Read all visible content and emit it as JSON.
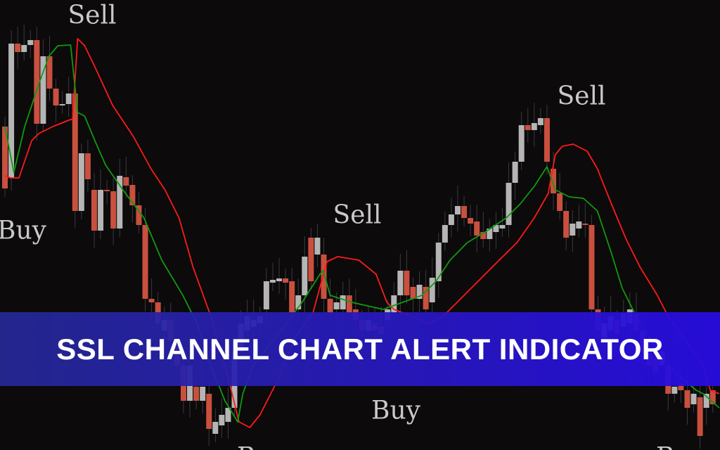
{
  "banner": {
    "title": "SSL CHANNEL CHART ALERT INDICATOR"
  },
  "signals": [
    {
      "label": "Sell"
    },
    {
      "label": "Sell"
    },
    {
      "label": "Sell"
    },
    {
      "label": "Buy"
    },
    {
      "label": "Buy"
    },
    {
      "label": "Buy"
    },
    {
      "label": "Buy"
    }
  ],
  "colors": {
    "background": "#0c0a0a",
    "bull_candle": "#b5b5b5",
    "bear_candle": "#c9503e",
    "ssl_up": "#ff1a1a",
    "ssl_down": "#119911",
    "banner": "#2a14d8"
  },
  "chart_data": {
    "type": "candlestick",
    "title": "",
    "xlabel": "",
    "ylabel": "",
    "grid": false,
    "x": "candle index",
    "ylim": [
      0,
      70
    ],
    "candles_open_close": [
      [
        52.0,
        43.2
      ],
      [
        44.7,
        63.8
      ],
      [
        63.8,
        62.6
      ],
      [
        62.6,
        63.6
      ],
      [
        63.6,
        64.3
      ],
      [
        64.3,
        52.4
      ],
      [
        52.4,
        62.0
      ],
      [
        62.0,
        57.4
      ],
      [
        57.4,
        55.0
      ],
      [
        55.0,
        55.2
      ],
      [
        55.2,
        56.7
      ],
      [
        56.7,
        40.0
      ],
      [
        40.0,
        48.2
      ],
      [
        48.2,
        44.5
      ],
      [
        43.0,
        37.2
      ],
      [
        37.2,
        43.0
      ],
      [
        43.0,
        42.8
      ],
      [
        42.8,
        37.5
      ],
      [
        37.5,
        45.0
      ],
      [
        44.8,
        43.6
      ],
      [
        43.7,
        40.8
      ],
      [
        40.8,
        38.0
      ],
      [
        38.0,
        27.5
      ],
      [
        27.5,
        27.0
      ],
      [
        27.0,
        24.0
      ],
      [
        23.0,
        24.5
      ],
      [
        24.5,
        21.5
      ],
      [
        21.5,
        18.0
      ],
      [
        18.0,
        13.0
      ],
      [
        13.0,
        18.0
      ],
      [
        15.0,
        13.0
      ],
      [
        13.0,
        15.0
      ],
      [
        14.0,
        9.0
      ],
      [
        8.3,
        10.0
      ],
      [
        9.5,
        11.0
      ],
      [
        10.0,
        12.0
      ],
      [
        12.0,
        20.0
      ],
      [
        20.0,
        24.0
      ],
      [
        23.0,
        25.0
      ],
      [
        23.5,
        24.5
      ],
      [
        24.0,
        25.0
      ],
      [
        26.0,
        30.0
      ],
      [
        29.8,
        30.2
      ],
      [
        30.0,
        30.4
      ],
      [
        30.4,
        29.8
      ],
      [
        30.0,
        25.5
      ],
      [
        26.0,
        28.0
      ],
      [
        28.0,
        33.5
      ],
      [
        36.2,
        30.0
      ],
      [
        33.8,
        36.2
      ],
      [
        33.8,
        27.5
      ],
      [
        27.5,
        25.5
      ],
      [
        26.0,
        27.0
      ],
      [
        26.0,
        28.0
      ],
      [
        28.0,
        25.5
      ],
      [
        26.0,
        24.5
      ],
      [
        24.5,
        23.0
      ],
      [
        23.0,
        24.5
      ],
      [
        24.0,
        23.0
      ],
      [
        23.5,
        22.5
      ],
      [
        24.5,
        26.0
      ],
      [
        25.5,
        28.0
      ],
      [
        28.0,
        31.5
      ],
      [
        31.5,
        28.0
      ],
      [
        29.2,
        27.5
      ],
      [
        27.5,
        29.5
      ],
      [
        29.2,
        26.0
      ],
      [
        27.0,
        30.5
      ],
      [
        30.0,
        35.5
      ],
      [
        35.5,
        38.0
      ],
      [
        38.0,
        39.5
      ],
      [
        39.5,
        40.7
      ],
      [
        40.7,
        39.0
      ],
      [
        39.0,
        38.2
      ],
      [
        38.5,
        36.5
      ],
      [
        37.0,
        36.0
      ],
      [
        36.0,
        37.5
      ],
      [
        37.0,
        38.0
      ],
      [
        37.5,
        38.0
      ],
      [
        38.0,
        44.0
      ],
      [
        44.0,
        47.0
      ],
      [
        47.0,
        52.2
      ],
      [
        52.2,
        51.5
      ],
      [
        51.5,
        52.5
      ],
      [
        52.2,
        53.2
      ],
      [
        53.2,
        47.0
      ],
      [
        46.0,
        42.5
      ],
      [
        42.5,
        40.0
      ],
      [
        40.0,
        36.2
      ],
      [
        36.5,
        38.2
      ],
      [
        37.5,
        38.5
      ],
      [
        38.2,
        38.0
      ],
      [
        38.0,
        26.0
      ],
      [
        26.0,
        23.0
      ],
      [
        22.0,
        24.0
      ],
      [
        23.0,
        25.0
      ],
      [
        24.5,
        22.5
      ],
      [
        23.5,
        25.5
      ],
      [
        24.0,
        26.0
      ],
      [
        25.5,
        23.0
      ],
      [
        23.0,
        20.0
      ],
      [
        20.0,
        18.0
      ],
      [
        19.0,
        17.0
      ],
      [
        18.0,
        20.0
      ],
      [
        18.0,
        14.0
      ],
      [
        14.0,
        15.0
      ],
      [
        15.5,
        14.5
      ],
      [
        14.5,
        12.0
      ],
      [
        12.5,
        14.0
      ],
      [
        13.5,
        8.0
      ],
      [
        12.0,
        14.0
      ],
      [
        14.5,
        12.5
      ]
    ],
    "series": [
      {
        "color": "#ff1a1a",
        "points": [
          [
            0,
            45
          ],
          [
            0.9,
            44.7
          ],
          [
            2.2,
            44.7
          ],
          [
            4.2,
            50
          ],
          [
            5.3,
            51
          ],
          [
            7.5,
            52
          ],
          [
            10.3,
            53
          ],
          [
            10.6,
            53
          ],
          [
            11.4,
            64.5
          ],
          [
            12.5,
            63.5
          ],
          [
            14.1,
            60.5
          ],
          [
            16.9,
            55
          ],
          [
            20.2,
            50.5
          ],
          [
            22.9,
            46
          ],
          [
            25.1,
            43
          ],
          [
            27.3,
            39
          ],
          [
            29.5,
            32
          ],
          [
            32.3,
            25
          ],
          [
            35.1,
            16
          ],
          [
            36.7,
            10
          ],
          [
            38.4,
            9.2
          ],
          [
            40,
            11
          ],
          [
            42.8,
            16
          ],
          [
            45.5,
            22
          ],
          [
            48.3,
            25.5
          ],
          [
            50.5,
            32.8
          ],
          [
            52.2,
            33.5
          ],
          [
            55.5,
            33
          ],
          [
            58.2,
            31
          ],
          [
            59.9,
            27
          ],
          [
            61,
            26
          ],
          [
            66.5,
            24
          ],
          [
            68.7,
            25
          ],
          [
            70.9,
            27
          ],
          [
            74.2,
            30
          ],
          [
            77.5,
            33
          ],
          [
            80.3,
            35.5
          ],
          [
            83,
            39
          ],
          [
            85.2,
            42.5
          ],
          [
            86.3,
            48
          ],
          [
            87.4,
            49.2
          ],
          [
            89.1,
            49.5
          ],
          [
            91.3,
            48.5
          ],
          [
            92.9,
            46
          ],
          [
            95.1,
            41
          ],
          [
            97.4,
            36
          ],
          [
            99.6,
            32
          ],
          [
            102.3,
            28
          ],
          [
            104,
            25
          ],
          [
            109.5,
            18
          ],
          [
            110.6,
            14.5
          ],
          [
            112,
            14
          ]
        ]
      },
      {
        "color": "#119911",
        "points": [
          [
            0,
            52
          ],
          [
            1.4,
            45.5
          ],
          [
            3.1,
            52
          ],
          [
            5.3,
            58
          ],
          [
            6.9,
            62
          ],
          [
            8.3,
            63.5
          ],
          [
            10.3,
            63.6
          ],
          [
            11.4,
            54
          ],
          [
            12.5,
            53.5
          ],
          [
            14.1,
            50
          ],
          [
            15.8,
            46.5
          ],
          [
            18.5,
            43
          ],
          [
            21.8,
            39
          ],
          [
            24.6,
            33
          ],
          [
            27.9,
            28
          ],
          [
            30.1,
            24
          ],
          [
            32.3,
            18
          ],
          [
            34.5,
            13
          ],
          [
            36.5,
            10
          ],
          [
            37.3,
            14
          ],
          [
            38.9,
            18
          ],
          [
            43.3,
            23
          ],
          [
            46.6,
            27
          ],
          [
            49.4,
            31
          ],
          [
            49.9,
            31.5
          ],
          [
            51,
            28
          ],
          [
            54.4,
            27
          ],
          [
            59.3,
            26
          ],
          [
            65.4,
            28
          ],
          [
            67.6,
            30
          ],
          [
            69.8,
            33
          ],
          [
            72.5,
            35.5
          ],
          [
            75.3,
            37
          ],
          [
            78.6,
            39
          ],
          [
            80.8,
            41
          ],
          [
            83,
            43.5
          ],
          [
            85,
            46.3
          ],
          [
            86.3,
            43
          ],
          [
            88.5,
            42
          ],
          [
            90.7,
            41.8
          ],
          [
            92.9,
            40
          ],
          [
            95.1,
            34
          ],
          [
            96.8,
            29
          ],
          [
            99,
            25
          ],
          [
            101.8,
            21
          ],
          [
            105.1,
            17
          ],
          [
            108.4,
            14.5
          ],
          [
            109.5,
            14
          ],
          [
            112,
            12
          ]
        ]
      }
    ]
  }
}
